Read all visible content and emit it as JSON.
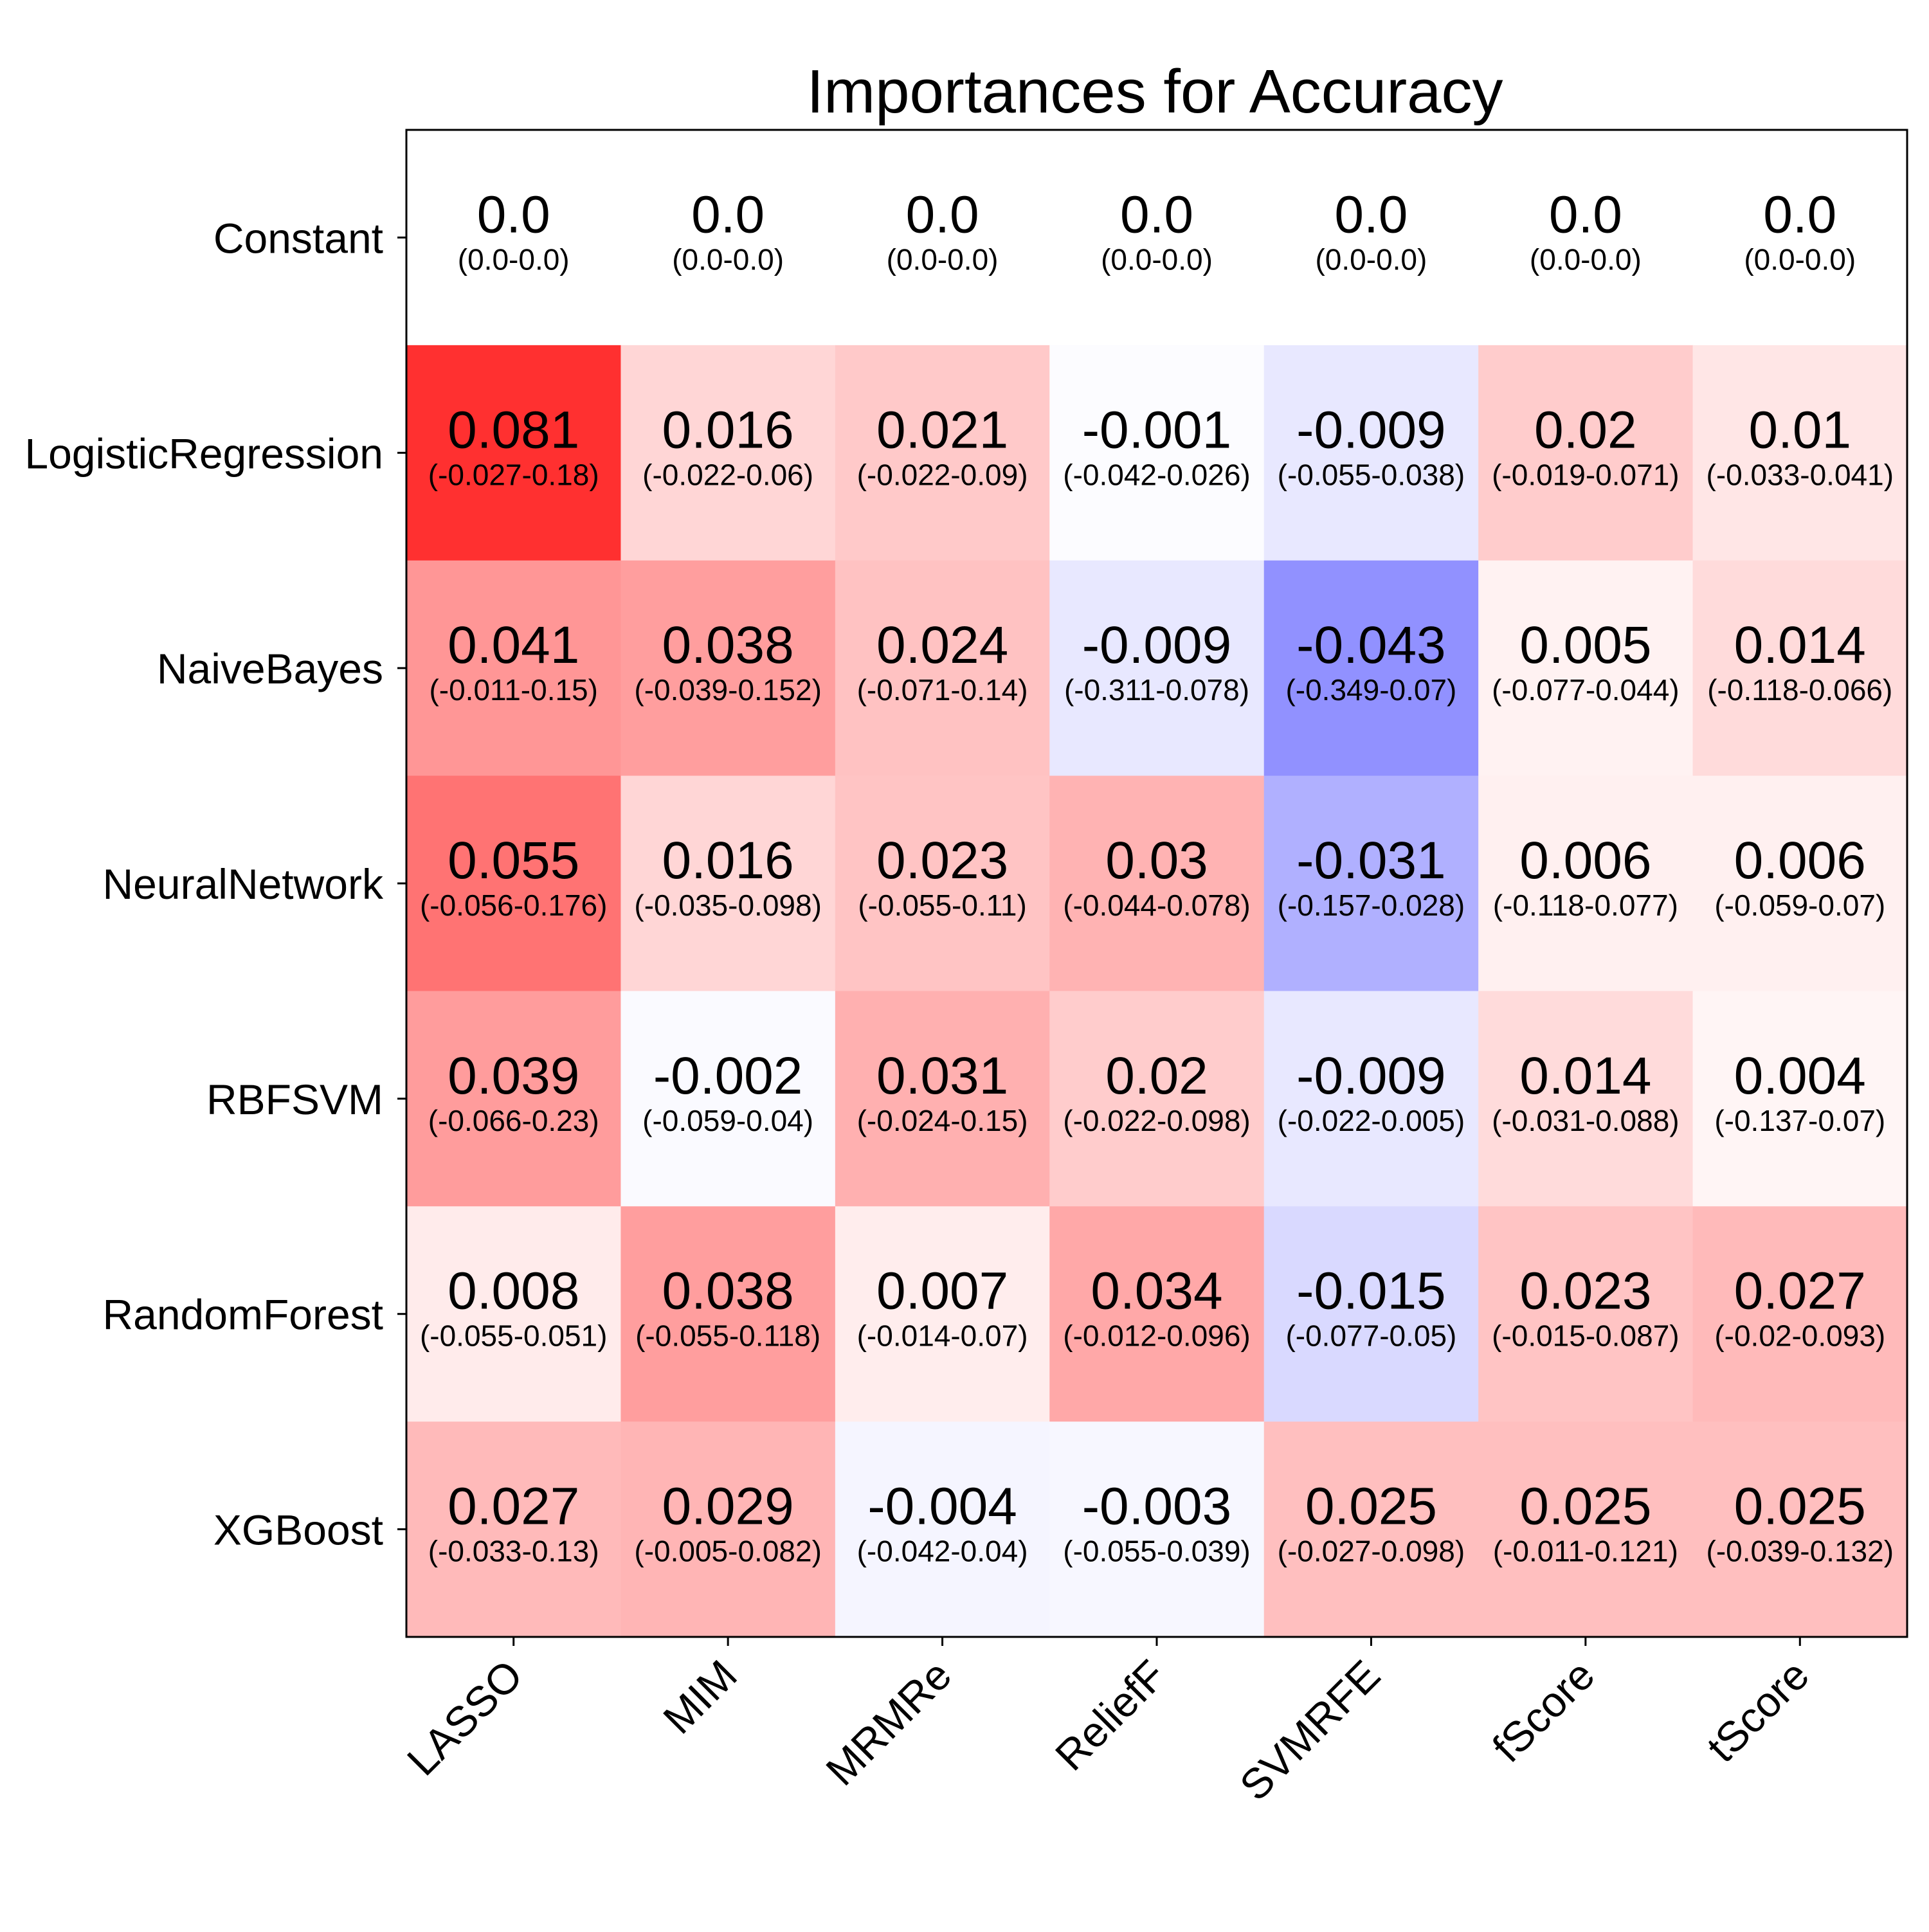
{
  "chart_data": {
    "type": "heatmap",
    "title": "Importances for Accuracy",
    "xlabel": "",
    "ylabel": "",
    "colormap": "bwr",
    "colors": {
      "positive": "#ff0000",
      "negative": "#0000ff",
      "neutral": "#ffffff"
    },
    "color_scale_max_abs": 0.1,
    "columns": [
      "LASSO",
      "MIM",
      "MRMRe",
      "ReliefF",
      "SVMRFE",
      "fScore",
      "tScore"
    ],
    "rows": [
      {
        "label": "Constant",
        "values": [
          0.0,
          0.0,
          0.0,
          0.0,
          0.0,
          0.0,
          0.0
        ],
        "value_labels": [
          "0.0",
          "0.0",
          "0.0",
          "0.0",
          "0.0",
          "0.0",
          "0.0"
        ],
        "ci_labels": [
          "(0.0-0.0)",
          "(0.0-0.0)",
          "(0.0-0.0)",
          "(0.0-0.0)",
          "(0.0-0.0)",
          "(0.0-0.0)",
          "(0.0-0.0)"
        ]
      },
      {
        "label": "LogisticRegression",
        "values": [
          0.081,
          0.016,
          0.021,
          -0.001,
          -0.009,
          0.02,
          0.01
        ],
        "value_labels": [
          "0.081",
          "0.016",
          "0.021",
          "-0.001",
          "-0.009",
          "0.02",
          "0.01"
        ],
        "ci_labels": [
          "(-0.027-0.18)",
          "(-0.022-0.06)",
          "(-0.022-0.09)",
          "(-0.042-0.026)",
          "(-0.055-0.038)",
          "(-0.019-0.071)",
          "(-0.033-0.041)"
        ]
      },
      {
        "label": "NaiveBayes",
        "values": [
          0.041,
          0.038,
          0.024,
          -0.009,
          -0.043,
          0.005,
          0.014
        ],
        "value_labels": [
          "0.041",
          "0.038",
          "0.024",
          "-0.009",
          "-0.043",
          "0.005",
          "0.014"
        ],
        "ci_labels": [
          "(-0.011-0.15)",
          "(-0.039-0.152)",
          "(-0.071-0.14)",
          "(-0.311-0.078)",
          "(-0.349-0.07)",
          "(-0.077-0.044)",
          "(-0.118-0.066)"
        ]
      },
      {
        "label": "NeuralNetwork",
        "values": [
          0.055,
          0.016,
          0.023,
          0.03,
          -0.031,
          0.006,
          0.006
        ],
        "value_labels": [
          "0.055",
          "0.016",
          "0.023",
          "0.03",
          "-0.031",
          "0.006",
          "0.006"
        ],
        "ci_labels": [
          "(-0.056-0.176)",
          "(-0.035-0.098)",
          "(-0.055-0.11)",
          "(-0.044-0.078)",
          "(-0.157-0.028)",
          "(-0.118-0.077)",
          "(-0.059-0.07)"
        ]
      },
      {
        "label": "RBFSVM",
        "values": [
          0.039,
          -0.002,
          0.031,
          0.02,
          -0.009,
          0.014,
          0.004
        ],
        "value_labels": [
          "0.039",
          "-0.002",
          "0.031",
          "0.02",
          "-0.009",
          "0.014",
          "0.004"
        ],
        "ci_labels": [
          "(-0.066-0.23)",
          "(-0.059-0.04)",
          "(-0.024-0.15)",
          "(-0.022-0.098)",
          "(-0.022-0.005)",
          "(-0.031-0.088)",
          "(-0.137-0.07)"
        ]
      },
      {
        "label": "RandomForest",
        "values": [
          0.008,
          0.038,
          0.007,
          0.034,
          -0.015,
          0.023,
          0.027
        ],
        "value_labels": [
          "0.008",
          "0.038",
          "0.007",
          "0.034",
          "-0.015",
          "0.023",
          "0.027"
        ],
        "ci_labels": [
          "(-0.055-0.051)",
          "(-0.055-0.118)",
          "(-0.014-0.07)",
          "(-0.012-0.096)",
          "(-0.077-0.05)",
          "(-0.015-0.087)",
          "(-0.02-0.093)"
        ]
      },
      {
        "label": "XGBoost",
        "values": [
          0.027,
          0.029,
          -0.004,
          -0.003,
          0.025,
          0.025,
          0.025
        ],
        "value_labels": [
          "0.027",
          "0.029",
          "-0.004",
          "-0.003",
          "0.025",
          "0.025",
          "0.025"
        ],
        "ci_labels": [
          "(-0.033-0.13)",
          "(-0.005-0.082)",
          "(-0.042-0.04)",
          "(-0.055-0.039)",
          "(-0.027-0.098)",
          "(-0.011-0.121)",
          "(-0.039-0.132)"
        ]
      }
    ],
    "grid": false,
    "legend": "none"
  }
}
